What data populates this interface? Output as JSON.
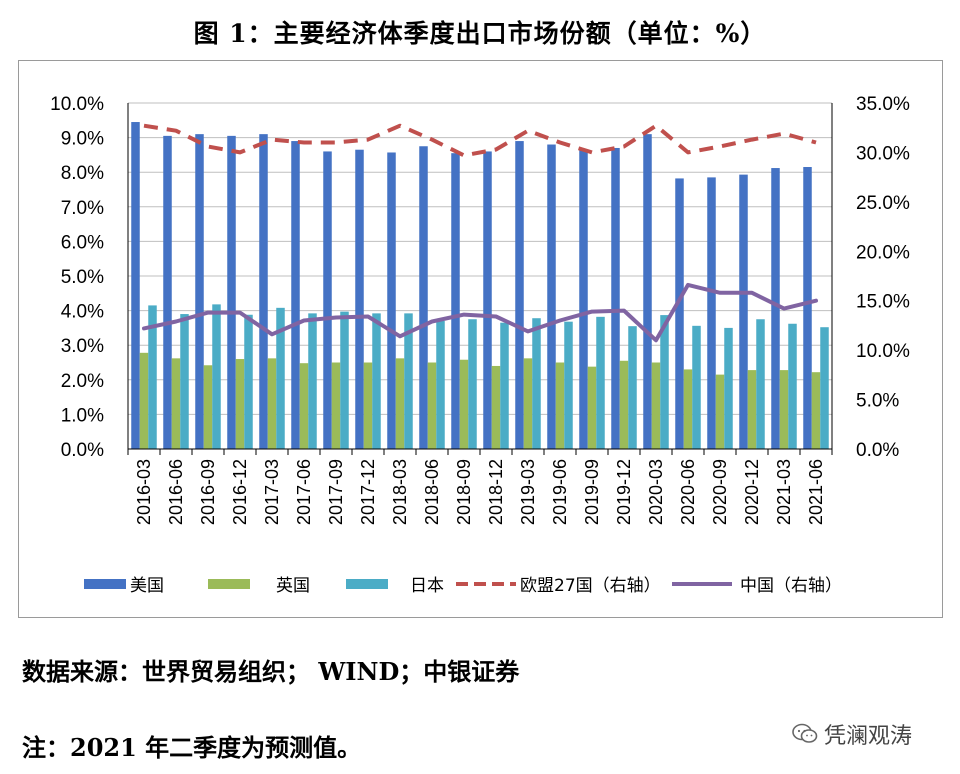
{
  "title": "图 1：主要经济体季度出口市场份额（单位：%）",
  "source": "数据来源：世界贸易组织； WIND；中银证券",
  "note": "注：2021 年二季度为预测值。",
  "watermark": {
    "text": "凭澜观涛",
    "icon": "wechat-icon"
  },
  "chart_data": {
    "type": "bar",
    "categories": [
      "2016-03",
      "2016-06",
      "2016-09",
      "2016-12",
      "2017-03",
      "2017-06",
      "2017-09",
      "2017-12",
      "2018-03",
      "2018-06",
      "2018-09",
      "2018-12",
      "2019-03",
      "2019-06",
      "2019-09",
      "2019-12",
      "2020-03",
      "2020-06",
      "2020-09",
      "2020-12",
      "2021-03",
      "2021-06"
    ],
    "ylim": [
      0,
      10
    ],
    "y2lim": [
      0,
      35
    ],
    "yticks": [
      "0.0%",
      "1.0%",
      "2.0%",
      "3.0%",
      "4.0%",
      "5.0%",
      "6.0%",
      "7.0%",
      "8.0%",
      "9.0%",
      "10.0%"
    ],
    "y2ticks": [
      "0.0%",
      "5.0%",
      "10.0%",
      "15.0%",
      "20.0%",
      "25.0%",
      "30.0%",
      "35.0%"
    ],
    "legend_position": "bottom",
    "series": [
      {
        "name": "美国",
        "kind": "bar",
        "axis": "left",
        "color": "#4472C4",
        "values": [
          9.45,
          9.05,
          9.1,
          9.05,
          9.1,
          8.9,
          8.6,
          8.65,
          8.57,
          8.75,
          8.55,
          8.6,
          8.9,
          8.8,
          8.65,
          8.7,
          9.1,
          7.82,
          7.85,
          7.93,
          8.12,
          8.15
        ]
      },
      {
        "name": "英国",
        "kind": "bar",
        "axis": "left",
        "color": "#9BBB59",
        "values": [
          2.78,
          2.62,
          2.42,
          2.6,
          2.62,
          2.48,
          2.5,
          2.5,
          2.62,
          2.5,
          2.58,
          2.4,
          2.62,
          2.5,
          2.38,
          2.55,
          2.5,
          2.3,
          2.15,
          2.28,
          2.28,
          2.22
        ]
      },
      {
        "name": "日本",
        "kind": "bar",
        "axis": "left",
        "color": "#4BACC6",
        "values": [
          4.15,
          3.9,
          4.18,
          3.88,
          4.08,
          3.92,
          3.97,
          3.92,
          3.92,
          3.7,
          3.75,
          3.65,
          3.78,
          3.68,
          3.82,
          3.55,
          3.87,
          3.56,
          3.5,
          3.75,
          3.62,
          3.52
        ]
      },
      {
        "name": "欧盟27国（右轴）",
        "kind": "line",
        "style": "dashed",
        "axis": "right",
        "color": "#C0504D",
        "values": [
          32.7,
          32.2,
          30.6,
          30.0,
          31.3,
          31.0,
          31.0,
          31.3,
          32.7,
          31.3,
          29.7,
          30.3,
          32.2,
          31.0,
          30.0,
          30.6,
          32.7,
          30.0,
          30.6,
          31.3,
          31.9,
          31.0
        ]
      },
      {
        "name": "中国（右轴）",
        "kind": "line",
        "style": "solid",
        "axis": "right",
        "color": "#8064A2",
        "values": [
          12.2,
          12.9,
          13.8,
          13.8,
          11.6,
          13.0,
          13.3,
          13.4,
          11.4,
          12.9,
          13.6,
          13.4,
          11.9,
          13.0,
          13.9,
          14.0,
          11.0,
          16.6,
          15.8,
          15.8,
          14.2,
          15.0
        ]
      }
    ]
  }
}
